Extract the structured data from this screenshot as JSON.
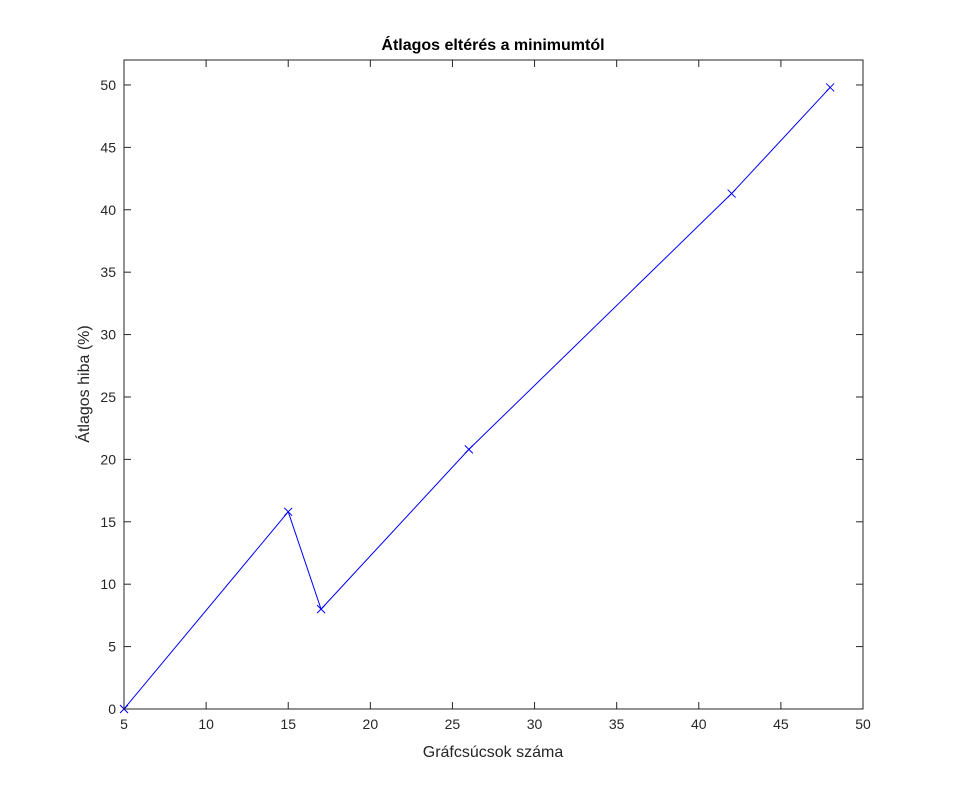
{
  "chart_data": {
    "type": "line",
    "title": "Átlagos eltérés a minimumtól",
    "xlabel": "Gráfcsúcsok száma",
    "ylabel": "Átlagos hiba (%)",
    "xlim": [
      5,
      50
    ],
    "ylim": [
      0,
      52
    ],
    "xticks": [
      5,
      10,
      15,
      20,
      25,
      30,
      35,
      40,
      45,
      50
    ],
    "yticks": [
      0,
      5,
      10,
      15,
      20,
      25,
      30,
      35,
      40,
      45,
      50
    ],
    "grid": false,
    "series": [
      {
        "marker": "x",
        "color": "#0000ff",
        "x": [
          5,
          15,
          17,
          26,
          42,
          48
        ],
        "y": [
          0,
          15.8,
          8.0,
          20.8,
          41.3,
          49.8
        ]
      }
    ]
  }
}
